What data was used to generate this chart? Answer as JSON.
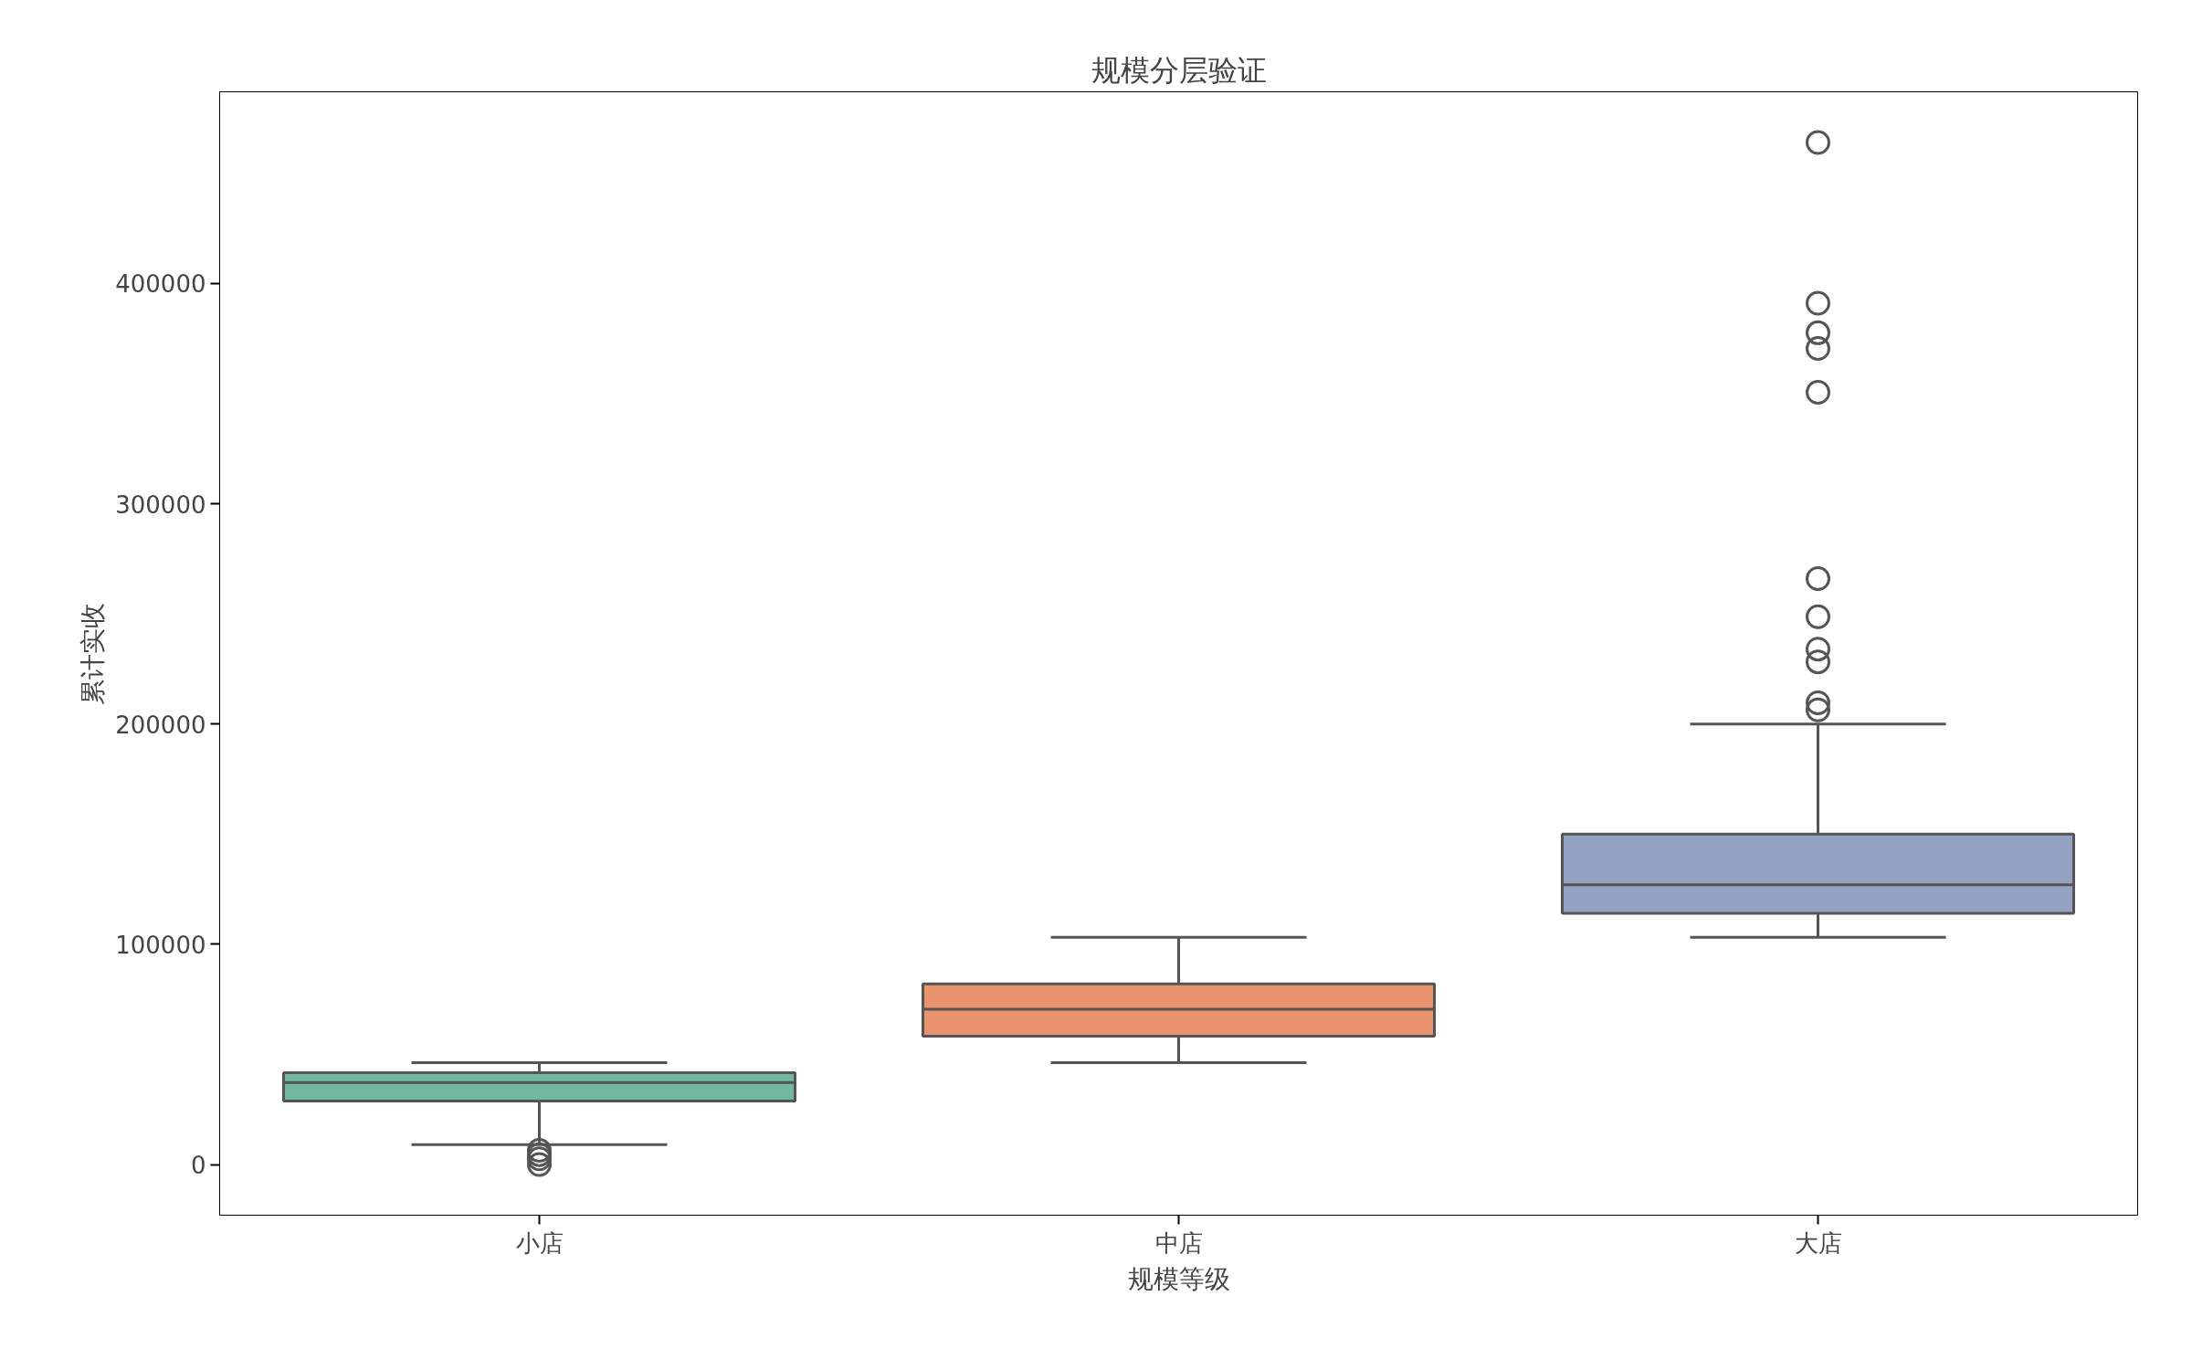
{
  "chart_data": {
    "type": "box",
    "title": "规模分层验证",
    "xlabel": "规模等级",
    "ylabel": "累计实收",
    "categories": [
      "小店",
      "中店",
      "大店"
    ],
    "colors": [
      "#72b7a0",
      "#e9946f",
      "#94a3c3"
    ],
    "boxes": [
      {
        "low": 9000,
        "q1": 28800,
        "median": 37200,
        "q3": 41700,
        "high": 46200,
        "outliers": [
          6400,
          4500,
          2600,
          0
        ]
      },
      {
        "low": 46200,
        "q1": 58300,
        "median": 70500,
        "q3": 82000,
        "high": 103200
      },
      {
        "low": 103200,
        "q1": 114000,
        "median": 127000,
        "q3": 150000,
        "high": 200000,
        "outliers": [
          464000,
          391000,
          377600,
          370500,
          350600,
          266000,
          248700,
          234000,
          228200,
          209600,
          206400
        ]
      }
    ],
    "ylim": [
      -23000,
      487000
    ],
    "yticks": [
      0,
      100000,
      200000,
      300000,
      400000
    ],
    "grid": false,
    "marker": "circle"
  }
}
